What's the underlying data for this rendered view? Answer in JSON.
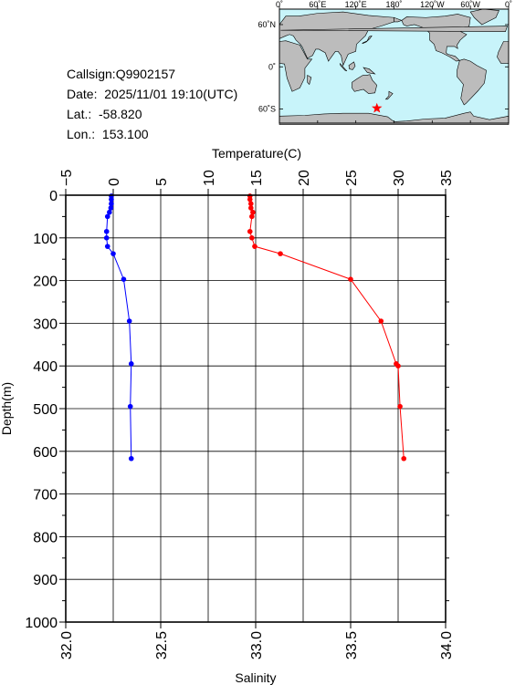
{
  "info": {
    "callsign": "Callsign:Q9902157",
    "date": "Date:  2025/11/01 19:10(UTC)",
    "lat": "Lat.:  -58.820",
    "lon": "Lon.:  153.100"
  },
  "map": {
    "lon_ticks": [
      "0˚",
      "60˚E",
      "120˚E",
      "180˚",
      "120˚W",
      "60˚W",
      "0˚"
    ],
    "lat_ticks": [
      "60˚N",
      "0˚",
      "60˚S"
    ],
    "station": {
      "lon": 153.1,
      "lat": -58.82
    },
    "colors": {
      "ocean": "#c8f4fa",
      "land": "#bcbcbc",
      "marker": "#ff0000"
    }
  },
  "chart_data": [
    {
      "type": "line",
      "xlabel": "Temperature(C)",
      "ylabel": "Depth(m)",
      "xlim": [
        -5,
        35
      ],
      "ylim": [
        1000,
        0
      ],
      "x_ticks": [
        "−5",
        "0",
        "5",
        "10",
        "15",
        "20",
        "25",
        "30",
        "35"
      ],
      "y_ticks": [
        "0",
        "100",
        "200",
        "300",
        "400",
        "500",
        "600",
        "700",
        "800",
        "900",
        "1000"
      ],
      "color": "#0000ff",
      "points": [
        {
          "x": -0.2,
          "y": 2
        },
        {
          "x": -0.2,
          "y": 10
        },
        {
          "x": -0.2,
          "y": 20
        },
        {
          "x": -0.25,
          "y": 30
        },
        {
          "x": -0.4,
          "y": 40
        },
        {
          "x": -0.6,
          "y": 50
        },
        {
          "x": -0.7,
          "y": 85
        },
        {
          "x": -0.7,
          "y": 100
        },
        {
          "x": -0.6,
          "y": 120
        },
        {
          "x": 0.0,
          "y": 137
        },
        {
          "x": 1.1,
          "y": 197
        },
        {
          "x": 1.7,
          "y": 295
        },
        {
          "x": 1.9,
          "y": 395
        },
        {
          "x": 1.8,
          "y": 495
        },
        {
          "x": 1.9,
          "y": 617
        }
      ]
    },
    {
      "type": "line",
      "xlabel": "Salinity",
      "ylabel": "Depth(m)",
      "xlim": [
        32.0,
        34.0
      ],
      "ylim": [
        1000,
        0
      ],
      "x_ticks": [
        "32.0",
        "32.5",
        "33.0",
        "33.5",
        "34.0"
      ],
      "color": "#ff0000",
      "points": [
        {
          "x": 32.97,
          "y": 2
        },
        {
          "x": 32.97,
          "y": 10
        },
        {
          "x": 32.975,
          "y": 20
        },
        {
          "x": 32.975,
          "y": 30
        },
        {
          "x": 32.985,
          "y": 40
        },
        {
          "x": 32.98,
          "y": 50
        },
        {
          "x": 32.97,
          "y": 85
        },
        {
          "x": 32.98,
          "y": 100
        },
        {
          "x": 32.995,
          "y": 120
        },
        {
          "x": 33.13,
          "y": 137
        },
        {
          "x": 33.5,
          "y": 197
        },
        {
          "x": 33.66,
          "y": 295
        },
        {
          "x": 33.74,
          "y": 395
        },
        {
          "x": 33.75,
          "y": 400
        },
        {
          "x": 33.76,
          "y": 495
        },
        {
          "x": 33.78,
          "y": 617
        }
      ]
    }
  ]
}
